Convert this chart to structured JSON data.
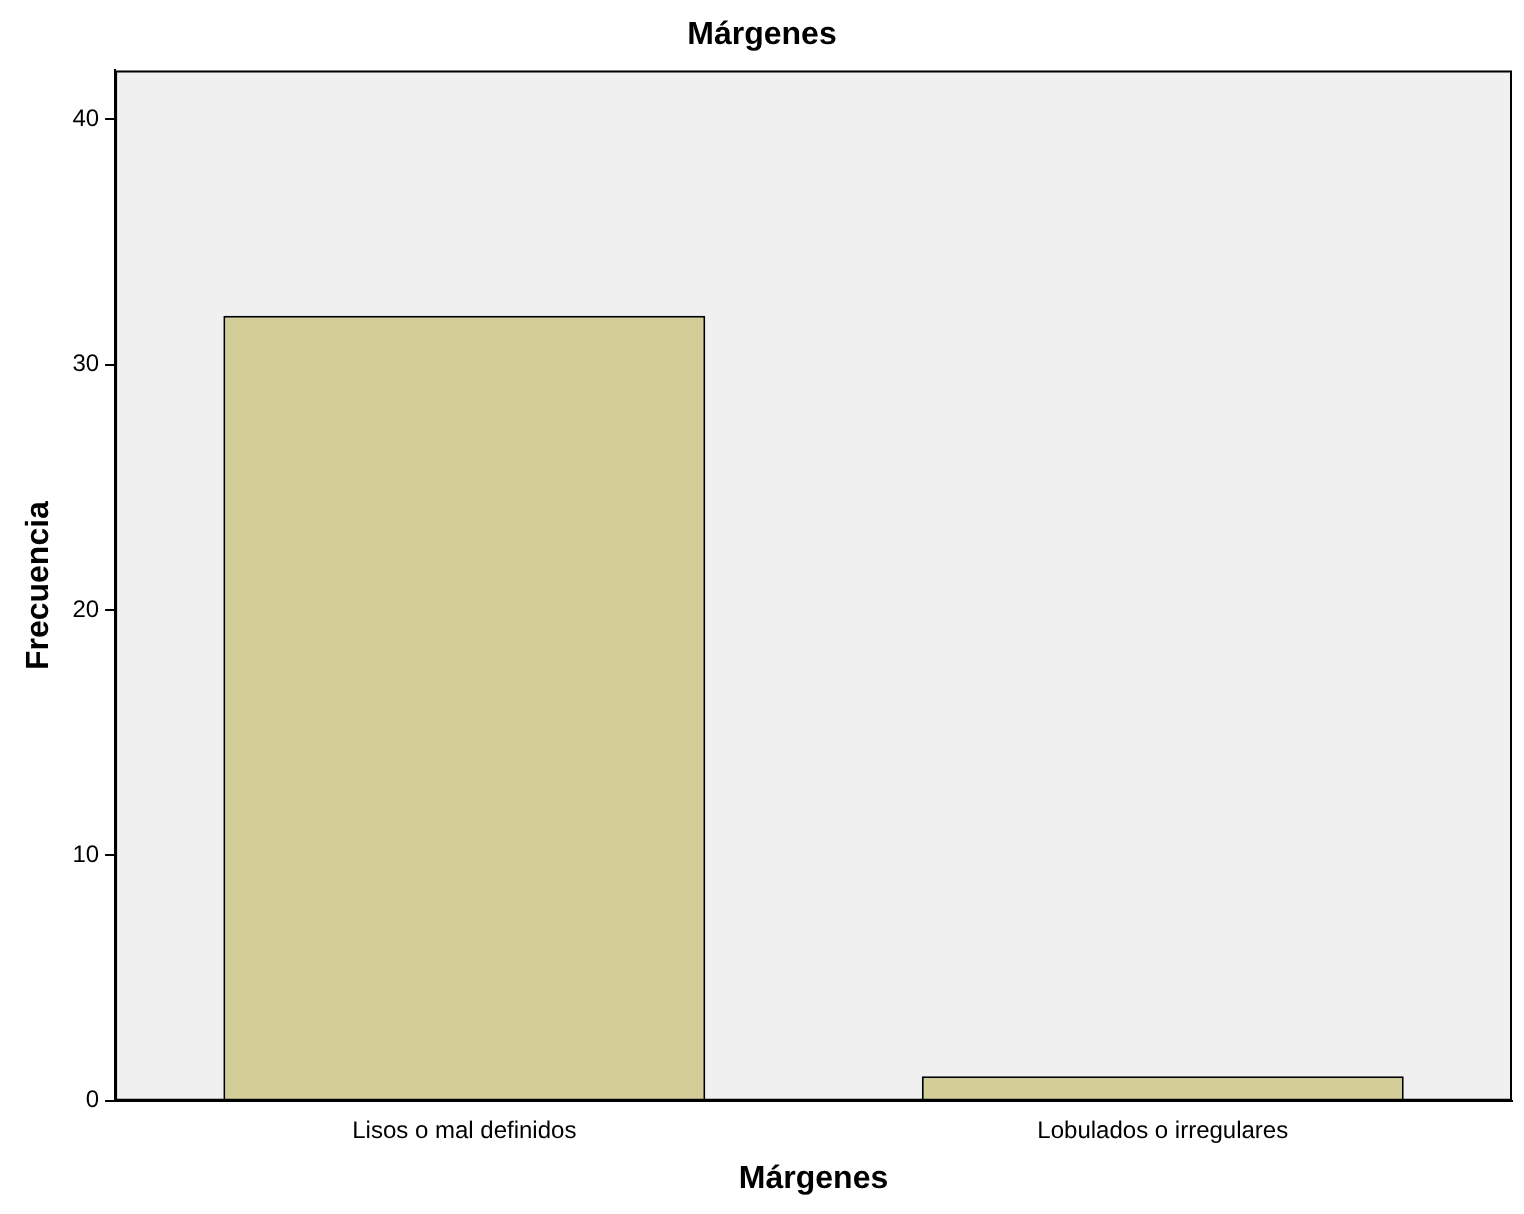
{
  "chart_data": {
    "type": "bar",
    "title": "Márgenes",
    "xlabel": "Márgenes",
    "ylabel": "Frecuencia",
    "categories": [
      "Lisos o mal definidos",
      "Lobulados o irregulares"
    ],
    "values": [
      32,
      1
    ],
    "color": "#d3ce97",
    "ylim": [
      0,
      42
    ],
    "yticks": [
      0,
      10,
      20,
      30,
      40
    ],
    "grid": false,
    "legend": false
  }
}
